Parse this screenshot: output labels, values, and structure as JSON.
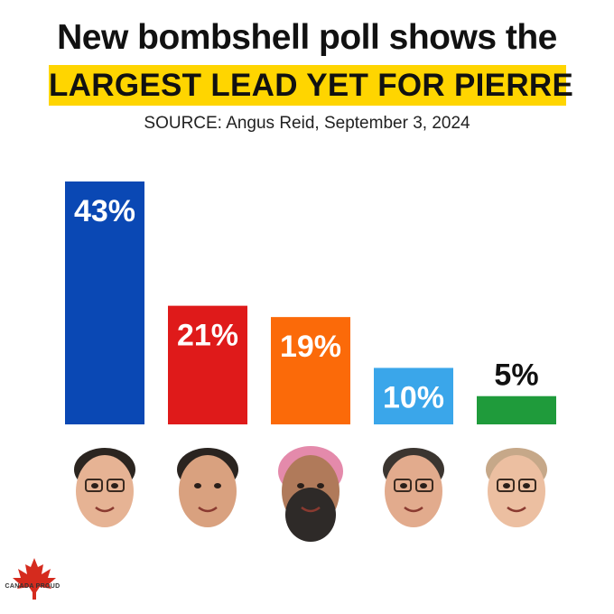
{
  "header": {
    "title_line1": "New bombshell poll shows the",
    "title_line2": "LARGEST LEAD YET FOR PIERRE",
    "source": "SOURCE: Angus Reid, September 3, 2024"
  },
  "chart_data": {
    "type": "bar",
    "title": "New bombshell poll shows the LARGEST LEAD YET FOR PIERRE",
    "categories": [
      "",
      "",
      "",
      "",
      ""
    ],
    "values": [
      43,
      21,
      19,
      10,
      5
    ],
    "value_labels": [
      "43%",
      "21%",
      "19%",
      "10%",
      "5%"
    ],
    "colors": [
      "#0a48b4",
      "#df1a1a",
      "#fb6a09",
      "#3aa6ea",
      "#1f9b3b"
    ],
    "label_colors": [
      "#ffffff",
      "#ffffff",
      "#ffffff",
      "#ffffff",
      "#111111"
    ],
    "ylim": [
      0,
      43
    ],
    "grid": false,
    "legend": "none"
  },
  "portraits": [
    {
      "icon": "portrait-1-icon",
      "skin": "#e6b394",
      "hair": "#2b2520",
      "headwear": ""
    },
    {
      "icon": "portrait-2-icon",
      "skin": "#d9a17f",
      "hair": "#2a2420",
      "headwear": ""
    },
    {
      "icon": "portrait-3-icon",
      "skin": "#b07a5a",
      "hair": "#2e2a28",
      "headwear": "#e48aab"
    },
    {
      "icon": "portrait-4-icon",
      "skin": "#e2ab8d",
      "hair": "#3b3530",
      "headwear": ""
    },
    {
      "icon": "portrait-5-icon",
      "skin": "#ecbfa1",
      "hair": "#c6a889",
      "headwear": ""
    }
  ],
  "branding": {
    "logo_text": "CANADA PROUD",
    "logo_icon": "maple-leaf-icon",
    "logo_color": "#d52b1e"
  }
}
